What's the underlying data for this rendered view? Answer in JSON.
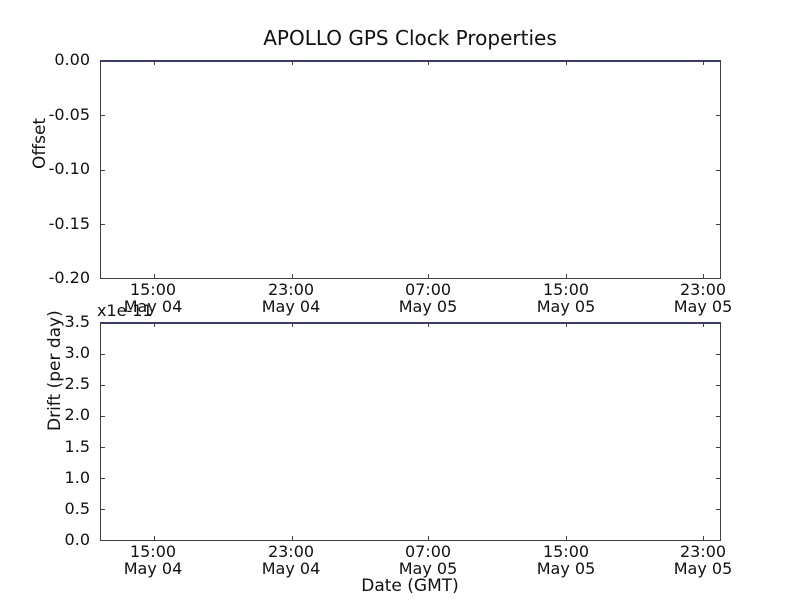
{
  "figure": {
    "title": "APOLLO GPS Clock Properties"
  },
  "colors": {
    "background": "#ffffff",
    "spine": "#404040",
    "text": "#111111",
    "series_line": "#3c3c6c"
  },
  "top_plot": {
    "ylabel": "Offset",
    "yticks": [
      "0.00",
      "-0.05",
      "-0.10",
      "-0.15",
      "-0.20"
    ],
    "xticks": [
      {
        "time": "15:00",
        "date": "May 04"
      },
      {
        "time": "23:00",
        "date": "May 04"
      },
      {
        "time": "07:00",
        "date": "May 05"
      },
      {
        "time": "15:00",
        "date": "May 05"
      },
      {
        "time": "23:00",
        "date": "May 05"
      }
    ]
  },
  "bottom_plot": {
    "ylabel": "Drift (per day)",
    "offset_text": "x1e-11",
    "yticks": [
      "3.5",
      "3.0",
      "2.5",
      "2.0",
      "1.5",
      "1.0",
      "0.5",
      "0.0"
    ],
    "xticks": [
      {
        "time": "15:00",
        "date": "May 04"
      },
      {
        "time": "23:00",
        "date": "May 04"
      },
      {
        "time": "07:00",
        "date": "May 05"
      },
      {
        "time": "15:00",
        "date": "May 05"
      },
      {
        "time": "23:00",
        "date": "May 05"
      }
    ],
    "xlabel": "Date (GMT)"
  },
  "chart_data": [
    {
      "type": "line",
      "title": "APOLLO GPS Clock Properties",
      "xlabel": "",
      "ylabel": "Offset",
      "ylim": [
        -0.2,
        0.0
      ],
      "yticks": [
        0.0,
        -0.05,
        -0.1,
        -0.15,
        -0.2
      ],
      "xtick_labels": [
        "15:00 May 04",
        "23:00 May 04",
        "07:00 May 05",
        "15:00 May 05",
        "23:00 May 05"
      ],
      "x_tick_interval_hours": 8,
      "grid": false,
      "legend": false,
      "series": [
        {
          "name": "offset",
          "color": "#3c3c6c",
          "x": [
            "May 04 ~12:30",
            "May 05 ~23:55"
          ],
          "y": [
            0.0,
            0.0
          ],
          "note": "flat line drawn along the top axis boundary at 0.00"
        }
      ]
    },
    {
      "type": "line",
      "title": "",
      "xlabel": "Date (GMT)",
      "ylabel": "Drift (per day)",
      "y_offset_text": "x1e-11",
      "ylim": [
        0.0,
        3.5
      ],
      "ytick_scale": 1e-11,
      "yticks": [
        0.0,
        0.5,
        1.0,
        1.5,
        2.0,
        2.5,
        3.0,
        3.5
      ],
      "xtick_labels": [
        "15:00 May 04",
        "23:00 May 04",
        "07:00 May 05",
        "15:00 May 05",
        "23:00 May 05"
      ],
      "x_tick_interval_hours": 8,
      "grid": false,
      "legend": false,
      "series": [
        {
          "name": "drift",
          "color": "#3c3c6c",
          "x": [
            "May 04 ~12:30",
            "May 05 ~23:55"
          ],
          "y": [
            3.5e-11,
            3.5e-11
          ],
          "note": "flat line drawn along the top axis boundary at 3.5e-11"
        }
      ]
    }
  ]
}
